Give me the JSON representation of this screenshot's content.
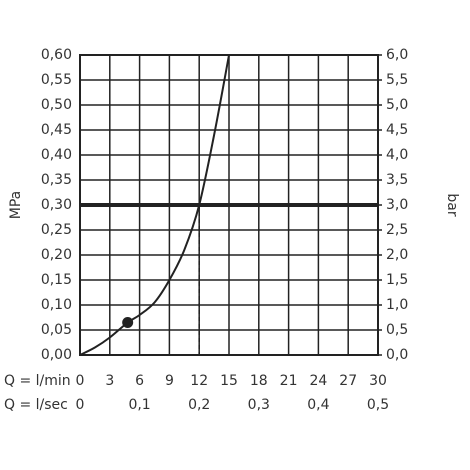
{
  "chart_data": {
    "type": "line",
    "x": [
      0,
      1.5,
      3,
      4.8,
      6,
      7.5,
      9,
      10.5,
      12,
      13.5,
      15
    ],
    "values": [
      0,
      0.015,
      0.035,
      0.065,
      0.08,
      0.105,
      0.15,
      0.21,
      0.3,
      0.44,
      0.6
    ],
    "color": "#222222",
    "marker": {
      "x": 4.8,
      "y": 0.065
    },
    "reference_y": 0.3,
    "reference_x": 12,
    "xlim": [
      0,
      30
    ],
    "xticks": [
      0,
      3,
      6,
      9,
      12,
      15,
      18,
      21,
      24,
      27,
      30
    ],
    "x_label": "Q = l/min",
    "x2lim": [
      0,
      0.5
    ],
    "x2ticks": [
      0,
      {
        "value": 0.1,
        "label": "0,1"
      },
      {
        "value": 0.2,
        "label": "0,2"
      },
      {
        "value": 0.3,
        "label": "0,3"
      },
      {
        "value": 0.4,
        "label": "0,4"
      },
      {
        "value": 0.5,
        "label": "0,5"
      }
    ],
    "x2_label": "Q = l/sec",
    "ylim": [
      0,
      0.6
    ],
    "yticks": [
      {
        "value": 0,
        "label": "0,00"
      },
      {
        "value": 0.05,
        "label": "0,05"
      },
      {
        "value": 0.1,
        "label": "0,10"
      },
      {
        "value": 0.15,
        "label": "0,15"
      },
      {
        "value": 0.2,
        "label": "0,20"
      },
      {
        "value": 0.25,
        "label": "0,25"
      },
      {
        "value": 0.3,
        "label": "0,30"
      },
      {
        "value": 0.35,
        "label": "0,35"
      },
      {
        "value": 0.4,
        "label": "0,40"
      },
      {
        "value": 0.45,
        "label": "0,45"
      },
      {
        "value": 0.5,
        "label": "0,50"
      },
      {
        "value": 0.55,
        "label": "0,55"
      },
      {
        "value": 0.6,
        "label": "0,60"
      }
    ],
    "y_label": "MPa",
    "y2lim": [
      0,
      6
    ],
    "y2ticks": [
      {
        "value": 0,
        "label": "0,0"
      },
      {
        "value": 0.5,
        "label": "0,5"
      },
      {
        "value": 1,
        "label": "1,0"
      },
      {
        "value": 1.5,
        "label": "1,5"
      },
      {
        "value": 2,
        "label": "2,0"
      },
      {
        "value": 2.5,
        "label": "2,5"
      },
      {
        "value": 3,
        "label": "3,0"
      },
      {
        "value": 3.5,
        "label": "3,5"
      },
      {
        "value": 4,
        "label": "4,0"
      },
      {
        "value": 4.5,
        "label": "4,5"
      },
      {
        "value": 5,
        "label": "5,0"
      },
      {
        "value": 5.5,
        "label": "5,5"
      },
      {
        "value": 6,
        "label": "6,0"
      }
    ],
    "y2_label": "bar",
    "grid": true
  }
}
